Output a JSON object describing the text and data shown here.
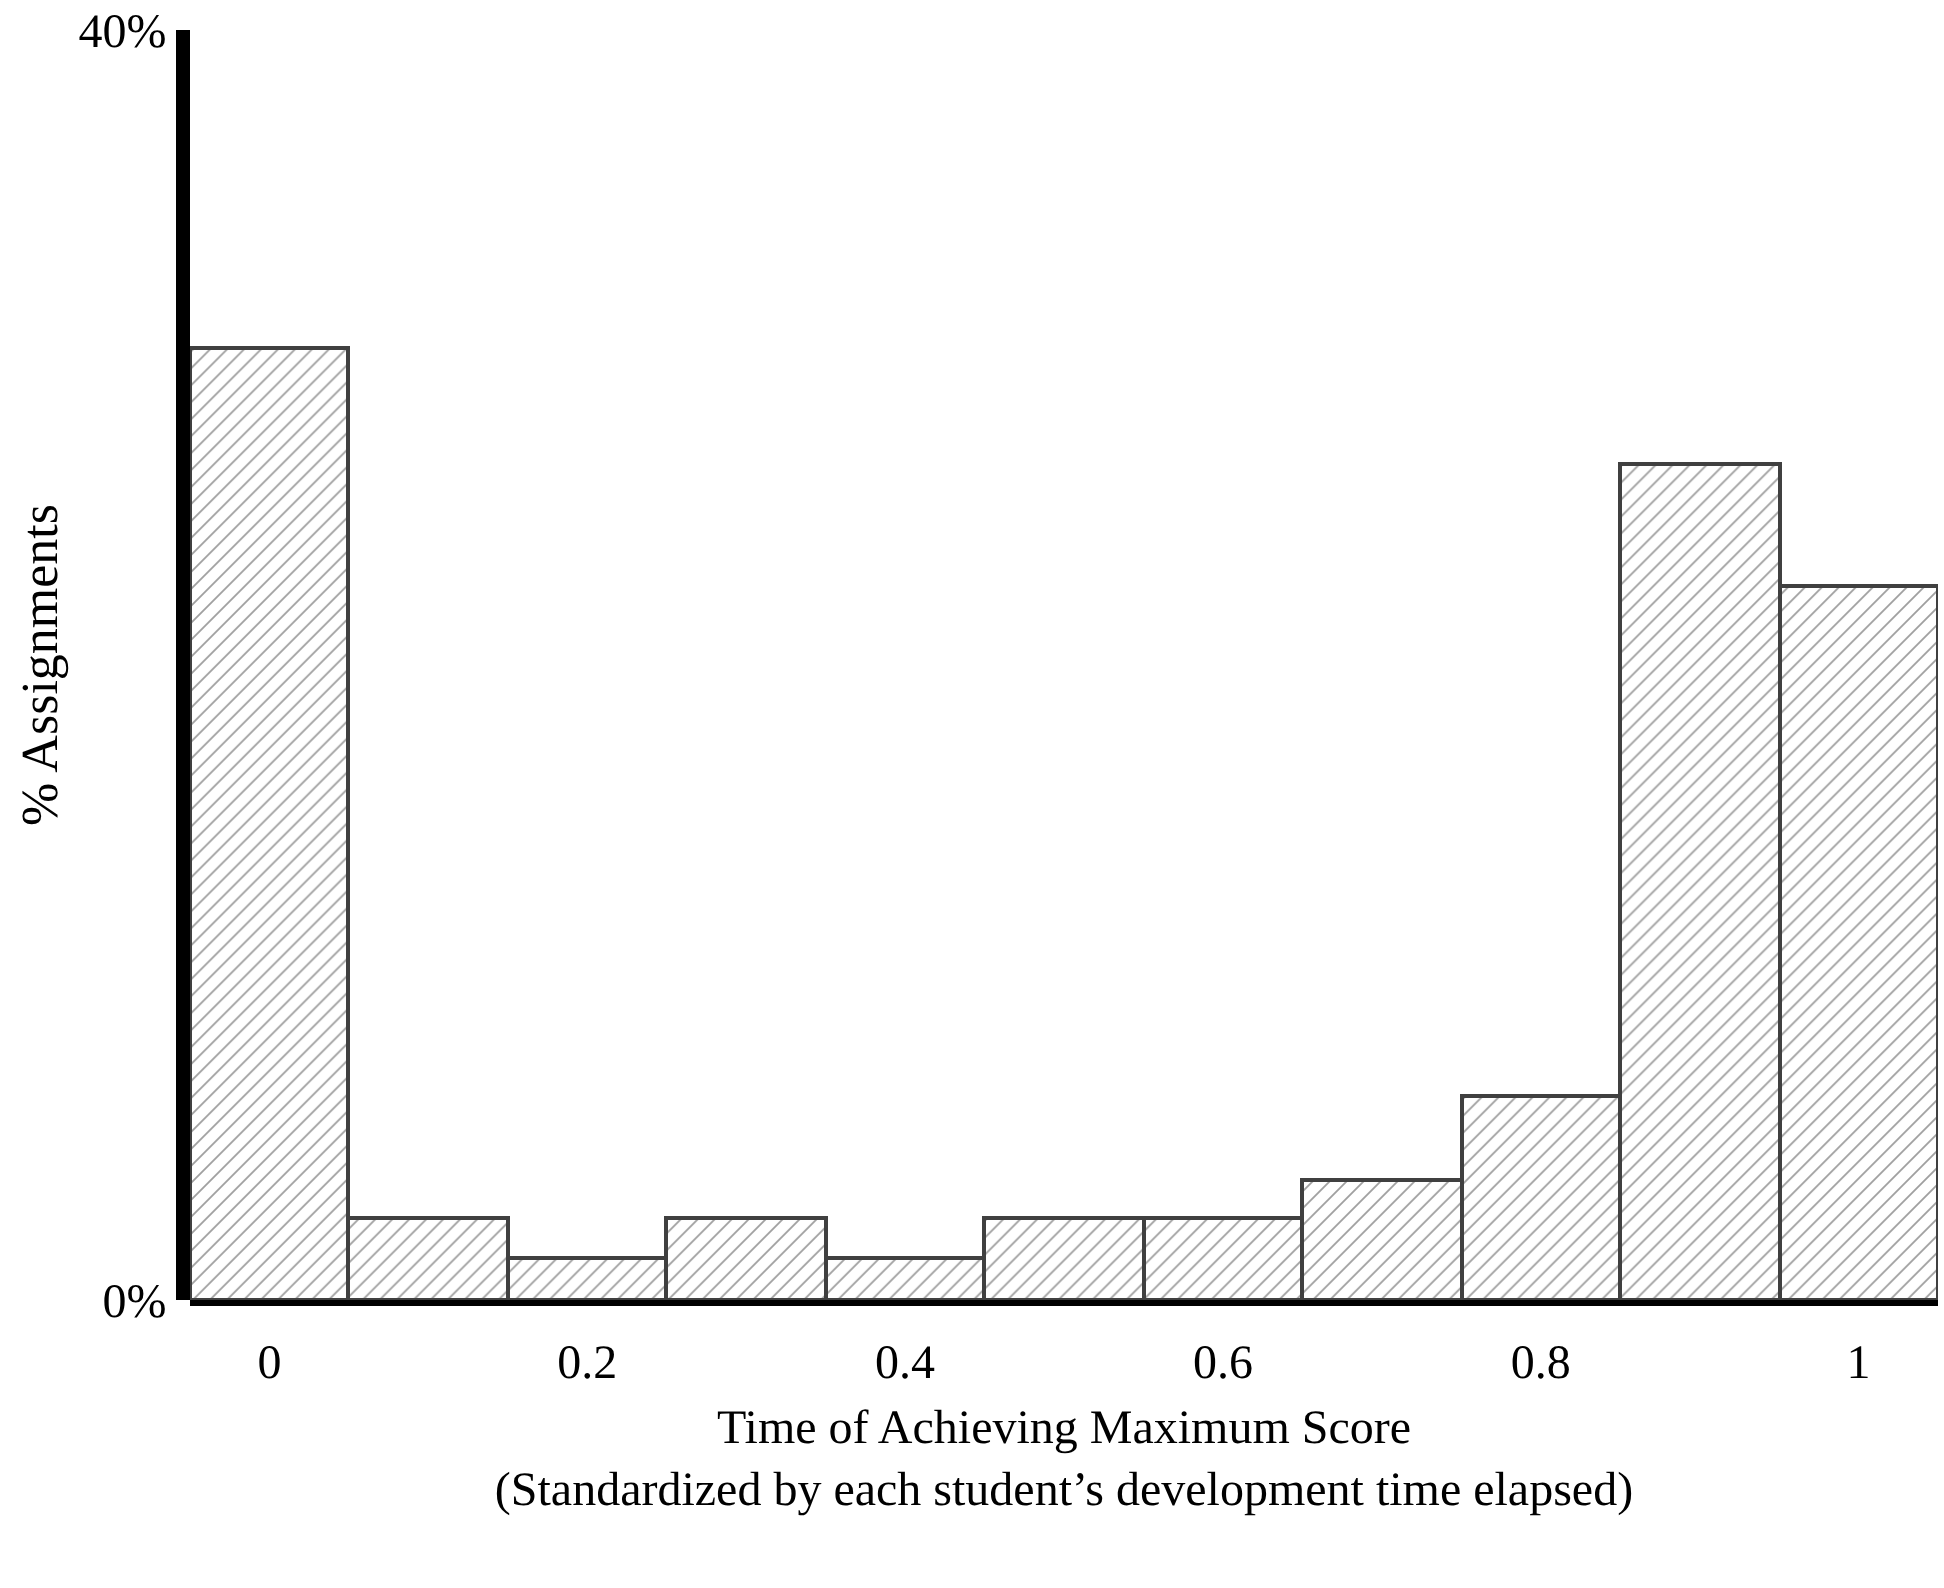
{
  "chart_data": {
    "type": "histogram",
    "xlabel": "Time of Achieving Maximum Score\n(Standardized by each student’s development time elapsed)",
    "ylabel": "% Assignments",
    "bins": [
      -0.05,
      0.05,
      0.15,
      0.25,
      0.35,
      0.45,
      0.55,
      0.65,
      0.75,
      0.85,
      0.95,
      1.05
    ],
    "values": [
      30.0,
      2.6,
      1.3,
      2.6,
      1.3,
      2.6,
      2.6,
      3.8,
      6.4,
      26.3,
      22.5
    ],
    "color": "#404040",
    "xlim": [
      -0.05,
      1.05
    ],
    "xticks": [
      0,
      0.2,
      0.4,
      0.6,
      0.8,
      1
    ],
    "ylim": [
      0,
      40
    ],
    "yticks": [
      {
        "value": 0,
        "label": "0%"
      },
      {
        "value": 40,
        "label": "40%"
      }
    ]
  }
}
